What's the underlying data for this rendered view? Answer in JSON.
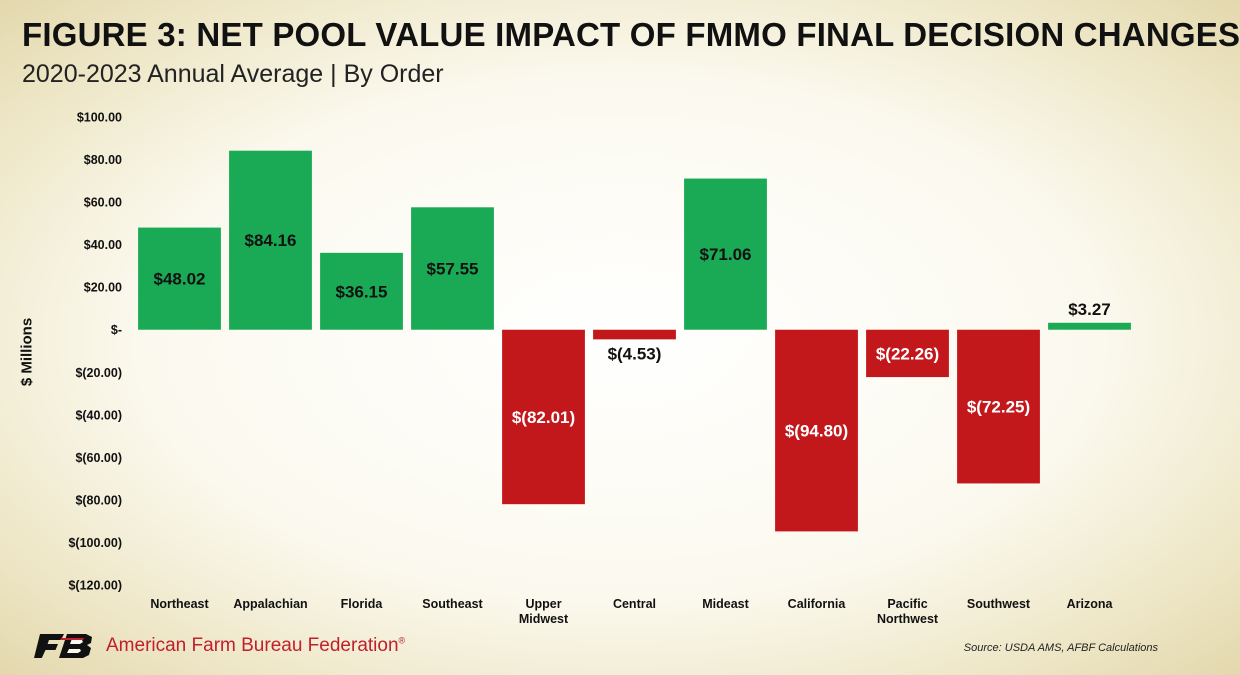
{
  "header": {
    "title": "FIGURE 3: NET POOL VALUE IMPACT OF FMMO FINAL DECISION CHANGES",
    "subtitle": "2020-2023 Annual Average | By Order"
  },
  "chart_data": {
    "type": "bar",
    "title": "FIGURE 3: NET POOL VALUE IMPACT OF FMMO FINAL DECISION CHANGES",
    "subtitle": "2020-2023 Annual Average | By Order",
    "xlabel": "",
    "ylabel": "$ Millions",
    "ylim": [
      -120,
      100
    ],
    "yticks": [
      100,
      80,
      60,
      40,
      20,
      0,
      -20,
      -40,
      -60,
      -80,
      -100,
      -120
    ],
    "ytick_labels": [
      "$100.00",
      "$80.00",
      "$60.00",
      "$40.00",
      "$20.00",
      "$-",
      "$(20.00)",
      "$(40.00)",
      "$(60.00)",
      "$(80.00)",
      "$(100.00)",
      "$(120.00)"
    ],
    "grid": false,
    "categories": [
      "Northeast",
      "Appalachian",
      "Florida",
      "Southeast",
      "Upper Midwest",
      "Central",
      "Mideast",
      "California",
      "Pacific Northwest",
      "Southwest",
      "Arizona"
    ],
    "category_lines": [
      [
        "Northeast"
      ],
      [
        "Appalachian"
      ],
      [
        "Florida"
      ],
      [
        "Southeast"
      ],
      [
        "Upper",
        "Midwest"
      ],
      [
        "Central"
      ],
      [
        "Mideast"
      ],
      [
        "California"
      ],
      [
        "Pacific",
        "Northwest"
      ],
      [
        "Southwest"
      ],
      [
        "Arizona"
      ]
    ],
    "values": [
      48.02,
      84.16,
      36.15,
      57.55,
      -82.01,
      -4.53,
      71.06,
      -94.8,
      -22.26,
      -72.25,
      3.27
    ],
    "data_labels": [
      "$48.02",
      "$84.16",
      "$36.15",
      "$57.55",
      "$(82.01)",
      "$(4.53)",
      "$71.06",
      "$(94.80)",
      "$(22.26)",
      "$(72.25)",
      "$3.27"
    ],
    "colors": {
      "positive": "#1aaa55",
      "negative": "#c2181c"
    }
  },
  "footer": {
    "logo_text": "FB",
    "org_name": "American Farm Bureau Federation",
    "registered_mark": "®",
    "source": "Source: USDA AMS, AFBF Calculations"
  }
}
